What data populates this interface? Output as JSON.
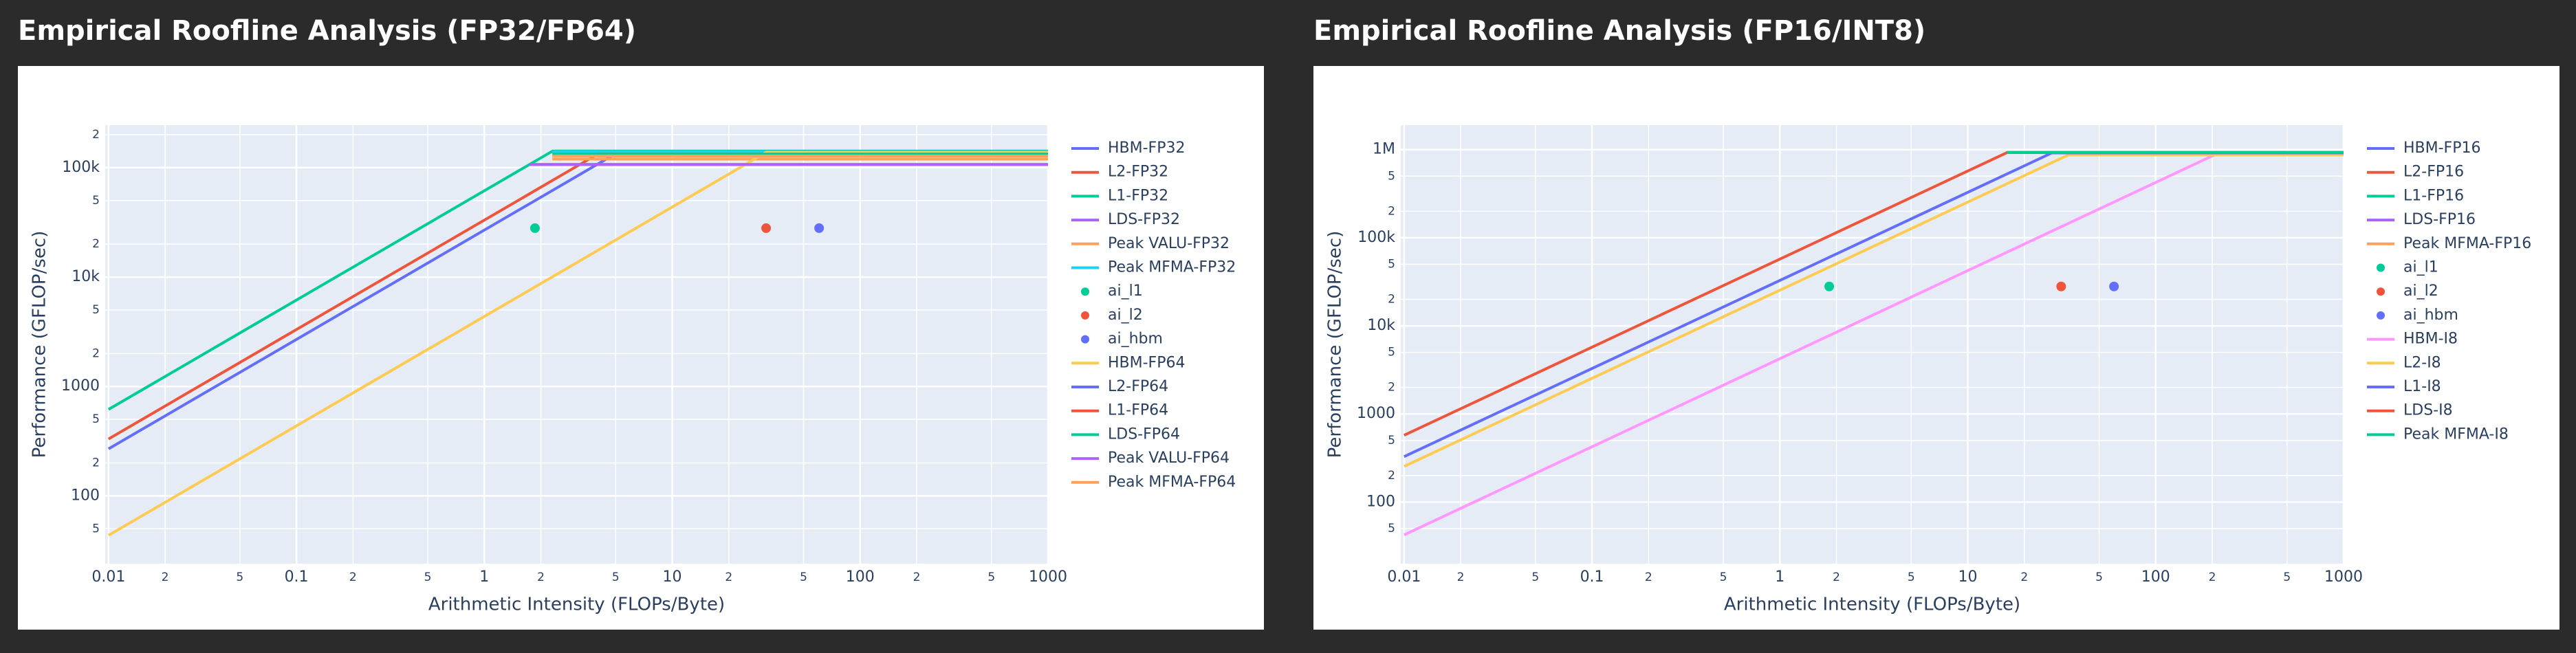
{
  "chart_data": [
    {
      "type": "line",
      "title": "Empirical Roofline Analysis (FP32/FP64)",
      "xlabel": "Arithmetic Intensity (FLOPs/Byte)",
      "ylabel": "Performance (GFLOP/sec)",
      "xscale": "log",
      "yscale": "log",
      "grid": true,
      "legend": "right",
      "xlim": [
        0.0096,
        1000
      ],
      "ylim": [
        24,
        245000
      ],
      "xticks": [
        0.01,
        {
          "value": 0.02,
          "label": "2"
        },
        {
          "value": 0.05,
          "label": "5"
        },
        0.1,
        {
          "value": 0.2,
          "label": "2"
        },
        {
          "value": 0.5,
          "label": "5"
        },
        1,
        {
          "value": 2,
          "label": "2"
        },
        {
          "value": 5,
          "label": "5"
        },
        10,
        {
          "value": 20,
          "label": "2"
        },
        {
          "value": 50,
          "label": "5"
        },
        100,
        {
          "value": 200,
          "label": "2"
        },
        {
          "value": 500,
          "label": "5"
        },
        1000
      ],
      "yticks": [
        {
          "value": 50,
          "label": "5"
        },
        100,
        {
          "value": 200,
          "label": "2"
        },
        {
          "value": 500,
          "label": "5"
        },
        1000,
        {
          "value": 2000,
          "label": "2"
        },
        {
          "value": 5000,
          "label": "5"
        },
        {
          "value": 10000,
          "label": "10k"
        },
        {
          "value": 20000,
          "label": "2"
        },
        {
          "value": 50000,
          "label": "5"
        },
        {
          "value": 100000,
          "label": "100k"
        },
        {
          "value": 200000,
          "label": "2"
        }
      ],
      "series": [
        {
          "name": "HBM-FP32",
          "color": "#636efa",
          "mode": "lines",
          "x": [
            0.01,
            5.1,
            1000
          ],
          "values": [
            269,
            137000,
            137000
          ]
        },
        {
          "name": "L2-FP32",
          "color": "#EF553B",
          "mode": "lines",
          "x": [
            0.01,
            4.07,
            1000
          ],
          "values": [
            331,
            135000,
            135000
          ]
        },
        {
          "name": "L1-FP32",
          "color": "#00cc96",
          "mode": "lines",
          "x": [
            0.01,
            2.31,
            1000
          ],
          "values": [
            617,
            142000,
            142000
          ]
        },
        {
          "name": "LDS-FP32",
          "color": "#ab63fa",
          "mode": "lines",
          "x": [
            1.74,
            1000
          ],
          "values": [
            107000,
            107000
          ]
        },
        {
          "name": "Peak VALU-FP32",
          "color": "#FFA15A",
          "mode": "lines",
          "x": [
            2.3,
            1000
          ],
          "values": [
            120000,
            120000
          ]
        },
        {
          "name": "Peak MFMA-FP32",
          "color": "#19d3f3",
          "mode": "lines",
          "x": [
            2.3,
            1000
          ],
          "values": [
            140000,
            140000
          ]
        },
        {
          "name": "ai_l1",
          "color": "#00cc96",
          "mode": "markers",
          "x": [
            1.86
          ],
          "values": [
            28000
          ]
        },
        {
          "name": "ai_l2",
          "color": "#EF553B",
          "mode": "markers",
          "x": [
            31.6
          ],
          "values": [
            28000
          ]
        },
        {
          "name": "ai_hbm",
          "color": "#636efa",
          "mode": "markers",
          "x": [
            60.5
          ],
          "values": [
            28000
          ]
        },
        {
          "name": "HBM-FP64",
          "color": "#FECB52",
          "mode": "lines",
          "x": [
            0.01,
            31.6,
            1000
          ],
          "values": [
            43.6,
            138000,
            138000
          ]
        },
        {
          "name": "L2-FP64",
          "color": "#636efa",
          "mode": "lines",
          "x": [
            4,
            1000
          ],
          "values": [
            128000,
            128000
          ]
        },
        {
          "name": "L1-FP64",
          "color": "#EF553B",
          "mode": "lines",
          "x": [
            4,
            1000
          ],
          "values": [
            133000,
            133000
          ]
        },
        {
          "name": "LDS-FP64",
          "color": "#00cc96",
          "mode": "lines",
          "x": [
            2.3,
            1000
          ],
          "values": [
            133000,
            133000
          ]
        },
        {
          "name": "Peak VALU-FP64",
          "color": "#ab63fa",
          "mode": "lines",
          "x": [
            1.74,
            1000
          ],
          "values": [
            107000,
            107000
          ]
        },
        {
          "name": "Peak MFMA-FP64",
          "color": "#FFA15A",
          "mode": "lines",
          "x": [
            2.3,
            1000
          ],
          "values": [
            128000,
            128000
          ]
        }
      ]
    },
    {
      "type": "line",
      "title": "Empirical Roofline Analysis (FP16/INT8)",
      "xlabel": "Arithmetic Intensity (FLOPs/Byte)",
      "ylabel": "Performance (GFLOP/sec)",
      "xscale": "log",
      "yscale": "log",
      "grid": true,
      "legend": "right",
      "xlim": [
        0.0096,
        1000
      ],
      "ylim": [
        20,
        1900000
      ],
      "xticks": [
        0.01,
        {
          "value": 0.02,
          "label": "2"
        },
        {
          "value": 0.05,
          "label": "5"
        },
        0.1,
        {
          "value": 0.2,
          "label": "2"
        },
        {
          "value": 0.5,
          "label": "5"
        },
        1,
        {
          "value": 2,
          "label": "2"
        },
        {
          "value": 5,
          "label": "5"
        },
        10,
        {
          "value": 20,
          "label": "2"
        },
        {
          "value": 50,
          "label": "5"
        },
        100,
        {
          "value": 200,
          "label": "2"
        },
        {
          "value": 500,
          "label": "5"
        },
        1000
      ],
      "yticks": [
        {
          "value": 50,
          "label": "5"
        },
        100,
        {
          "value": 200,
          "label": "2"
        },
        {
          "value": 500,
          "label": "5"
        },
        1000,
        {
          "value": 2000,
          "label": "2"
        },
        {
          "value": 5000,
          "label": "5"
        },
        {
          "value": 10000,
          "label": "10k"
        },
        {
          "value": 20000,
          "label": "2"
        },
        {
          "value": 50000,
          "label": "5"
        },
        {
          "value": 100000,
          "label": "100k"
        },
        {
          "value": 200000,
          "label": "2"
        },
        {
          "value": 500000,
          "label": "5"
        },
        {
          "value": 1000000,
          "label": "1M"
        }
      ],
      "series": [
        {
          "name": "HBM-FP16",
          "color": "#636efa",
          "mode": "lines",
          "x": [
            0.01,
            28,
            1000
          ],
          "values": [
            328,
            918000,
            918000
          ]
        },
        {
          "name": "L2-FP16",
          "color": "#EF553B",
          "mode": "lines",
          "x": [
            0.01,
            16.2,
            1000
          ],
          "values": [
            573,
            928000,
            928000
          ]
        },
        {
          "name": "L1-FP16",
          "color": "#00cc96",
          "mode": "lines",
          "x": [
            16.2,
            1000
          ],
          "values": [
            930000,
            930000
          ]
        },
        {
          "name": "LDS-FP16",
          "color": "#ab63fa",
          "mode": "lines",
          "x": [
            28,
            1000
          ],
          "values": [
            920000,
            920000
          ]
        },
        {
          "name": "Peak MFMA-FP16",
          "color": "#FFA15A",
          "mode": "lines",
          "x": [
            34.3,
            1000
          ],
          "values": [
            880000,
            880000
          ]
        },
        {
          "name": "ai_l1",
          "color": "#00cc96",
          "mode": "markers",
          "x": [
            1.83
          ],
          "values": [
            28000
          ]
        },
        {
          "name": "ai_l2",
          "color": "#EF553B",
          "mode": "markers",
          "x": [
            31.4
          ],
          "values": [
            28000
          ]
        },
        {
          "name": "ai_hbm",
          "color": "#636efa",
          "mode": "markers",
          "x": [
            60
          ],
          "values": [
            28000
          ]
        },
        {
          "name": "HBM-I8",
          "color": "#FF97FF",
          "mode": "lines",
          "x": [
            0.01,
            211,
            1000
          ],
          "values": [
            42.4,
            895000,
            895000
          ]
        },
        {
          "name": "L2-I8",
          "color": "#FECB52",
          "mode": "lines",
          "x": [
            0.01,
            34.3,
            1000
          ],
          "values": [
            254,
            871000,
            871000
          ]
        },
        {
          "name": "L1-I8",
          "color": "#636efa",
          "mode": "lines",
          "x": [
            28,
            1000
          ],
          "values": [
            918000,
            918000
          ]
        },
        {
          "name": "LDS-I8",
          "color": "#EF553B",
          "mode": "lines",
          "x": [
            16.2,
            1000
          ],
          "values": [
            928000,
            928000
          ]
        },
        {
          "name": "Peak MFMA-I8",
          "color": "#00cc96",
          "mode": "lines",
          "x": [
            16.2,
            1000
          ],
          "values": [
            930000,
            930000
          ]
        }
      ]
    }
  ]
}
